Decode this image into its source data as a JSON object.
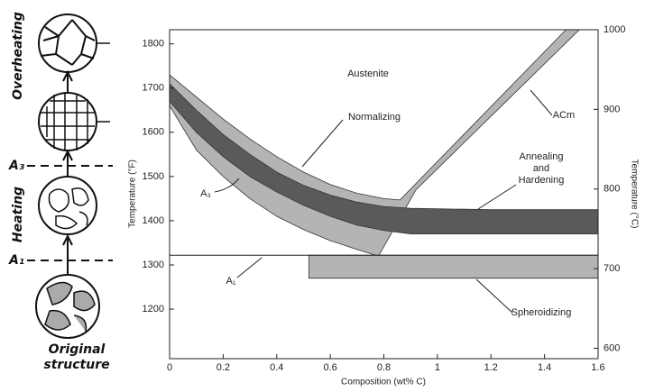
{
  "chart_data": {
    "type": "region",
    "x_label": "Composition (wt% C)",
    "y_label": "Temperature (°F)",
    "y2_label": "Temperature (°C)",
    "xlim": [
      0,
      1.6
    ],
    "xticks": [
      0,
      0.2,
      0.4,
      0.6,
      0.8,
      1.0,
      1.2,
      1.4,
      1.6
    ],
    "ylim": [
      1088,
      1832
    ],
    "yticks": [
      1200,
      1300,
      1400,
      1500,
      1600,
      1700,
      1800
    ],
    "y2lim": [
      587,
      1000
    ],
    "y2ticks": [
      600,
      700,
      800,
      900,
      1000
    ],
    "regions": [
      {
        "color": "#b4b4b4",
        "x": [
          0,
          0.1,
          0.2,
          0.3,
          0.4,
          0.5,
          0.6,
          0.7,
          0.8,
          0.86,
          1.48,
          1.53,
          0.92,
          0.78,
          0.7,
          0.6,
          0.5,
          0.4,
          0.3,
          0.2,
          0.1,
          0
        ],
        "y": [
          1730,
          1680,
          1630,
          1585,
          1545,
          1510,
          1482,
          1462,
          1450,
          1447,
          1832,
          1832,
          1470,
          1320,
          1335,
          1355,
          1380,
          1410,
          1450,
          1500,
          1560,
          1660
        ]
      },
      {
        "color": "#5a5a5a",
        "x": [
          0,
          0.1,
          0.2,
          0.3,
          0.4,
          0.5,
          0.6,
          0.7,
          0.8,
          0.9,
          1.2,
          1.6,
          1.6,
          0.9,
          0.8,
          0.7,
          0.6,
          0.5,
          0.4,
          0.3,
          0.2,
          0.1,
          0
        ],
        "y": [
          1710,
          1650,
          1595,
          1550,
          1510,
          1480,
          1458,
          1442,
          1432,
          1428,
          1425,
          1425,
          1370,
          1370,
          1378,
          1390,
          1410,
          1435,
          1465,
          1500,
          1545,
          1600,
          1670
        ]
      },
      {
        "color": "#b4b4b4",
        "x": [
          0.52,
          1.6,
          1.6,
          0.52
        ],
        "y": [
          1322,
          1322,
          1270,
          1270
        ]
      }
    ],
    "a1_line": {
      "x": [
        0,
        1.6
      ],
      "y": [
        1322,
        1322
      ]
    },
    "annotations": [
      "Austenite",
      "Normalizing",
      [
        "Annealing",
        "and",
        "Hardening"
      ],
      "Spheroidizing",
      "A₃",
      "A₁",
      "ACm"
    ]
  },
  "schematic": {
    "labels": [
      "Overheating",
      "A₃",
      "Heating",
      "A₁"
    ],
    "bottom_label": [
      "Original",
      "structure"
    ]
  }
}
